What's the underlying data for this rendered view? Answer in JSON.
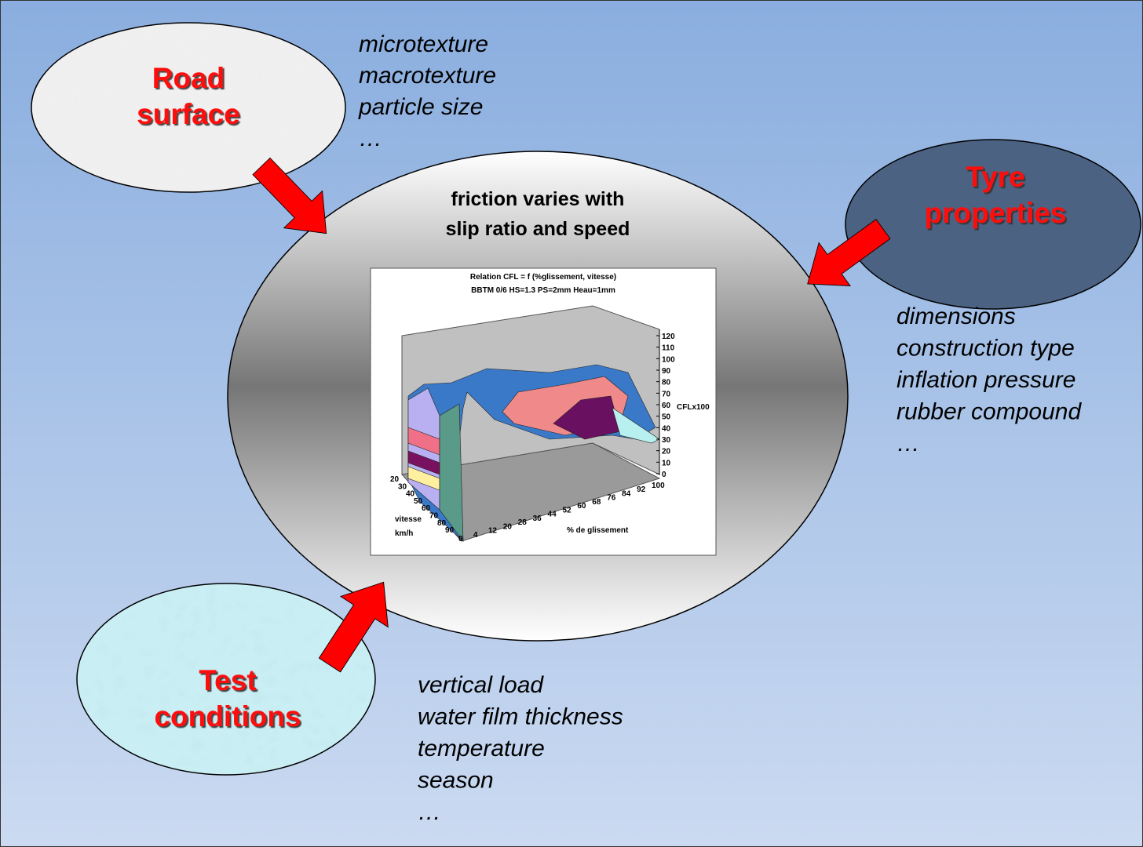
{
  "road": {
    "label": [
      "Road",
      "surface"
    ],
    "items": [
      "microtexture",
      "macrotexture",
      "particle size",
      "…"
    ]
  },
  "tyre": {
    "label": [
      "Tyre",
      "properties"
    ],
    "items": [
      "dimensions",
      "construction type",
      "inflation pressure",
      "rubber compound",
      "…"
    ]
  },
  "test": {
    "label": [
      "Test",
      "conditions"
    ],
    "items": [
      "vertical load",
      "water film thickness",
      "temperature",
      "season",
      "…"
    ]
  },
  "center": {
    "label": [
      "friction varies with",
      "slip ratio and speed"
    ]
  },
  "inset_chart": {
    "title": [
      "Relation CFL = f (%glissement, vitesse)",
      "BBTM 0/6  HS=1.3  PS=2mm  Heau=1mm"
    ],
    "z_axis_label": "CFLx100",
    "z_ticks": [
      "0",
      "10",
      "20",
      "30",
      "40",
      "50",
      "60",
      "70",
      "80",
      "90",
      "100",
      "110",
      "120"
    ],
    "speed_label": [
      "vitesse",
      "km/h"
    ],
    "speed_ticks": [
      "20",
      "30",
      "40",
      "50",
      "60",
      "70",
      "80",
      "90"
    ],
    "slip_label": "% de glissement",
    "slip_ticks": [
      "0",
      "4",
      "12",
      "20",
      "28",
      "36",
      "44",
      "52",
      "60",
      "68",
      "76",
      "84",
      "92",
      "100"
    ]
  }
}
